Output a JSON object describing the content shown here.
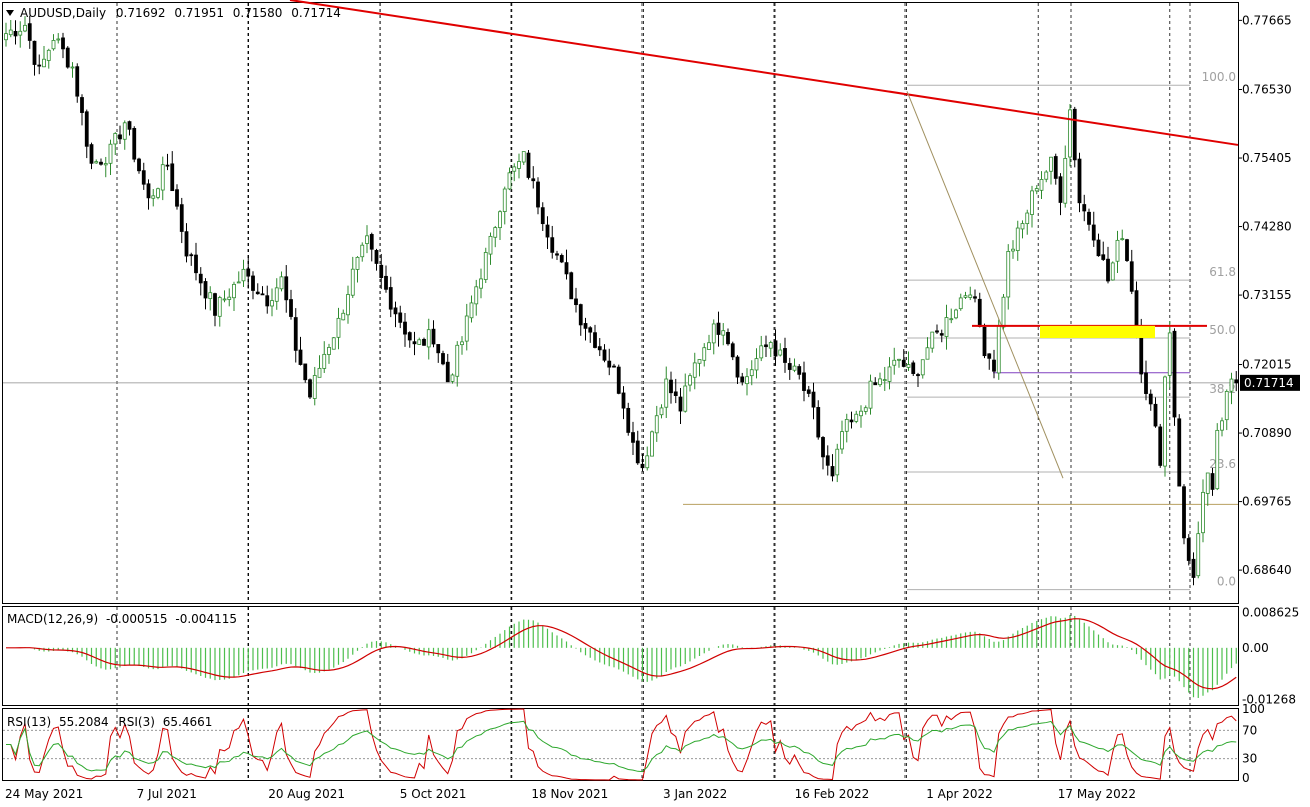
{
  "colors": {
    "bull": "#2e8b2e",
    "bear": "#000000",
    "trendline": "#e00000",
    "fib": "#b0b0b0",
    "fib_text": "#a0a0a0",
    "support": "#b8a060",
    "highlight": "#ffff00",
    "macd_hist": "#4cbf4c",
    "signal": "#d00000",
    "rsi13": "#2ea82e",
    "rsi3": "#d00000",
    "price_tag_bg": "#000000",
    "price_tag_fg": "#ffffff",
    "grid": "#000000"
  },
  "header": {
    "symbol": "AUDUSD,Daily",
    "open": "0.71692",
    "high": "0.71951",
    "low": "0.71580",
    "close": "0.71714",
    "toggle_icon": "triangle-down-icon"
  },
  "chart_data": [
    {
      "type": "candlestick",
      "series_name": "AUDUSD,Daily",
      "x_labels": [
        "24 May 2021",
        "7 Jul 2021",
        "20 Aug 2021",
        "5 Oct 2021",
        "18 Nov 2021",
        "3 Jan 2022",
        "16 Feb 2022",
        "1 Apr 2022",
        "17 May 2022"
      ],
      "y_ticks": [
        "0.77665",
        "0.76530",
        "0.75405",
        "0.74280",
        "0.73155",
        "0.72015",
        "0.70890",
        "0.69765",
        "0.68640"
      ],
      "ylim": [
        0.681,
        0.7795
      ],
      "current_price": "0.71714",
      "last_close": 0.71714,
      "n_bars": 255,
      "anchors": [
        [
          0,
          0.7745
        ],
        [
          4,
          0.776
        ],
        [
          7,
          0.768
        ],
        [
          10,
          0.774
        ],
        [
          14,
          0.769
        ],
        [
          18,
          0.753
        ],
        [
          22,
          0.755
        ],
        [
          25,
          0.76
        ],
        [
          30,
          0.747
        ],
        [
          34,
          0.753
        ],
        [
          38,
          0.739
        ],
        [
          44,
          0.729
        ],
        [
          50,
          0.735
        ],
        [
          55,
          0.731
        ],
        [
          58,
          0.734
        ],
        [
          61,
          0.723
        ],
        [
          64,
          0.715
        ],
        [
          67,
          0.722
        ],
        [
          70,
          0.727
        ],
        [
          73,
          0.735
        ],
        [
          76,
          0.74
        ],
        [
          79,
          0.734
        ],
        [
          82,
          0.729
        ],
        [
          86,
          0.723
        ],
        [
          90,
          0.725
        ],
        [
          93,
          0.7175
        ],
        [
          96,
          0.724
        ],
        [
          99,
          0.733
        ],
        [
          102,
          0.74
        ],
        [
          105,
          0.75
        ],
        [
          109,
          0.754
        ],
        [
          112,
          0.747
        ],
        [
          115,
          0.74
        ],
        [
          118,
          0.734
        ],
        [
          121,
          0.728
        ],
        [
          125,
          0.723
        ],
        [
          128,
          0.719
        ],
        [
          130,
          0.714
        ],
        [
          132,
          0.707
        ],
        [
          134,
          0.7035
        ],
        [
          137,
          0.712
        ],
        [
          139,
          0.717
        ],
        [
          142,
          0.713
        ],
        [
          145,
          0.72
        ],
        [
          148,
          0.725
        ],
        [
          151,
          0.727
        ],
        [
          153,
          0.722
        ],
        [
          155,
          0.717
        ],
        [
          158,
          0.721
        ],
        [
          161,
          0.724
        ],
        [
          164,
          0.72
        ],
        [
          167,
          0.718
        ],
        [
          170,
          0.712
        ],
        [
          172,
          0.705
        ],
        [
          174,
          0.701
        ],
        [
          176,
          0.709
        ],
        [
          179,
          0.711
        ],
        [
          182,
          0.716
        ],
        [
          185,
          0.718
        ],
        [
          188,
          0.721
        ],
        [
          191,
          0.718
        ],
        [
          194,
          0.723
        ],
        [
          197,
          0.726
        ],
        [
          200,
          0.73
        ],
        [
          203,
          0.733
        ],
        [
          206,
          0.723
        ],
        [
          208,
          0.72
        ],
        [
          211,
          0.738
        ],
        [
          214,
          0.743
        ],
        [
          217,
          0.75
        ],
        [
          220,
          0.753
        ],
        [
          222,
          0.748
        ],
        [
          224,
          0.762
        ],
        [
          226,
          0.747
        ],
        [
          229,
          0.742
        ],
        [
          232,
          0.734
        ],
        [
          235,
          0.742
        ],
        [
          237,
          0.733
        ],
        [
          239,
          0.72
        ],
        [
          241,
          0.713
        ],
        [
          243,
          0.705
        ],
        [
          244,
          0.718
        ],
        [
          245,
          0.726
        ],
        [
          246,
          0.712
        ],
        [
          247,
          0.701
        ],
        [
          248,
          0.691
        ],
        [
          249,
          0.688
        ],
        [
          250,
          0.686
        ],
        [
          251,
          0.692
        ],
        [
          252,
          0.698
        ],
        [
          253,
          0.701
        ],
        [
          254,
          0.7
        ],
        [
          255,
          0.708
        ],
        [
          256,
          0.71
        ],
        [
          257,
          0.716
        ],
        [
          258,
          0.719
        ],
        [
          259,
          0.7171
        ]
      ],
      "trendline": {
        "from": [
          "start",
          0.78
        ],
        "to": [
          "end",
          0.7562
        ]
      },
      "support_level": 0.6972,
      "resistance_level": 0.7265,
      "resistance_zone": [
        0.7245,
        0.7265
      ],
      "purple_level": 0.7188
    },
    {
      "type": "fibonacci",
      "levels": [
        {
          "label": "100.0",
          "value": 0.766
        },
        {
          "label": "61.8",
          "value": 0.734
        },
        {
          "label": "50.0",
          "value": 0.7245
        },
        {
          "label": "38.2",
          "value": 0.7148
        },
        {
          "label": "23.6",
          "value": 0.7025
        },
        {
          "label": "0.0",
          "value": 0.6832
        }
      ]
    },
    {
      "type": "macd",
      "label": "MACD(12,26,9)",
      "value1": "-0.000515",
      "value2": "-0.004115",
      "y_ticks": [
        "0.008625",
        "0.00",
        "-0.01268"
      ],
      "ylim": [
        -0.014,
        0.01
      ]
    },
    {
      "type": "rsi",
      "label": "RSI(13)",
      "value13": "55.2084",
      "label3": "RSI(3)",
      "value3": "65.4661",
      "y_ticks": [
        "100",
        "70",
        "30",
        "0"
      ],
      "levels": [
        70,
        30
      ]
    }
  ]
}
